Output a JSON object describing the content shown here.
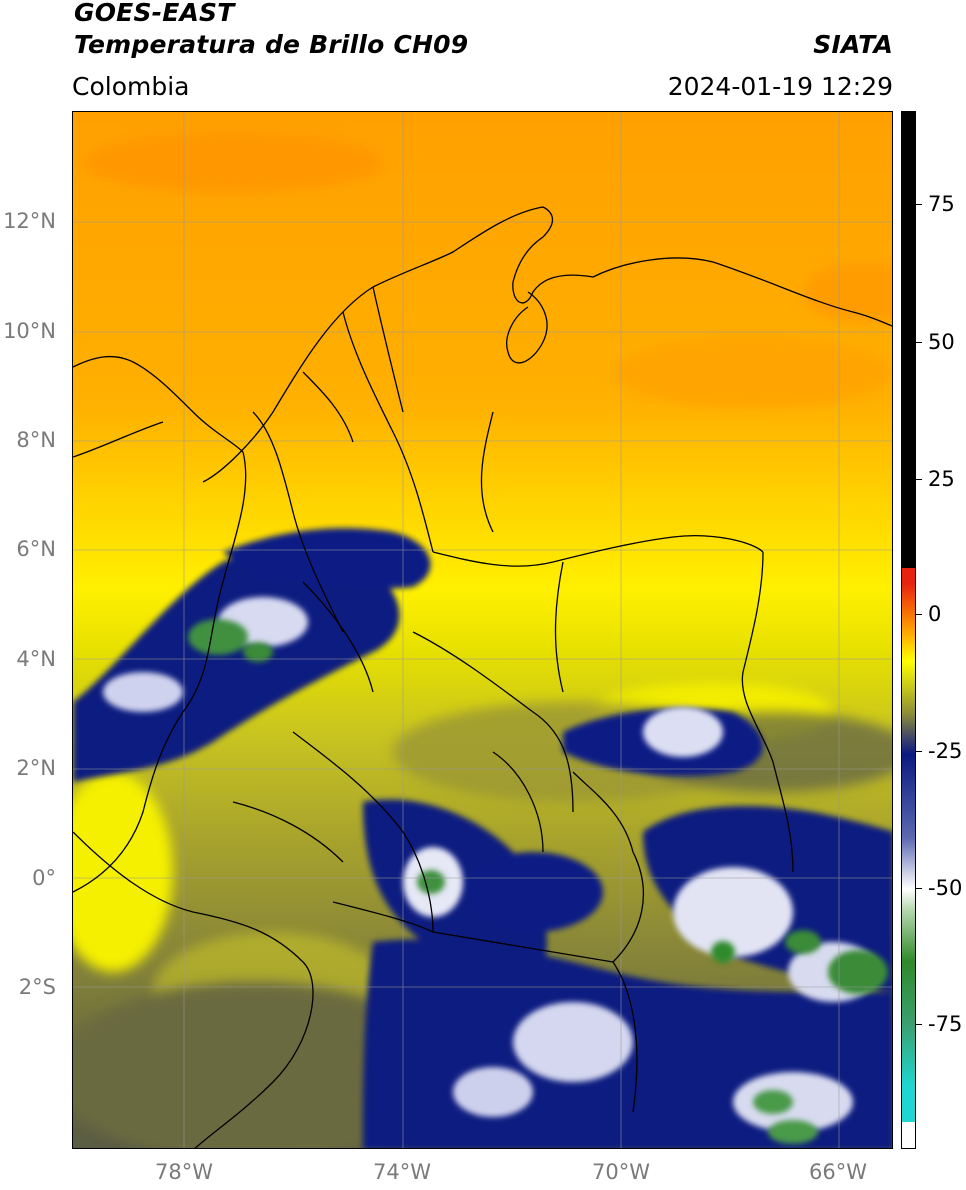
{
  "header": {
    "satellite": "GOES-EAST",
    "product": "Temperatura de Brillo CH09",
    "org": "SIATA",
    "region": "Colombia",
    "datetime": "2024-01-19 12:29"
  },
  "map": {
    "lat_labels": [
      "12°N",
      "10°N",
      "8°N",
      "6°N",
      "4°N",
      "2°N",
      "0°",
      "2°S"
    ],
    "lon_labels": [
      "78°W",
      "74°W",
      "70°W",
      "66°W"
    ]
  },
  "colorbar": {
    "labels": [
      "75",
      "50",
      "25",
      "0",
      "-25",
      "-50",
      "-75"
    ],
    "colors": {
      "black": "#000000",
      "red": "#e8220f",
      "orange": "#ffa000",
      "yellow": "#ffff00",
      "olive": "#8f8f36",
      "navy": "#0a1a80",
      "white": "#ffffff",
      "green": "#2f8a2a",
      "cyan": "#1fd6d0"
    }
  }
}
